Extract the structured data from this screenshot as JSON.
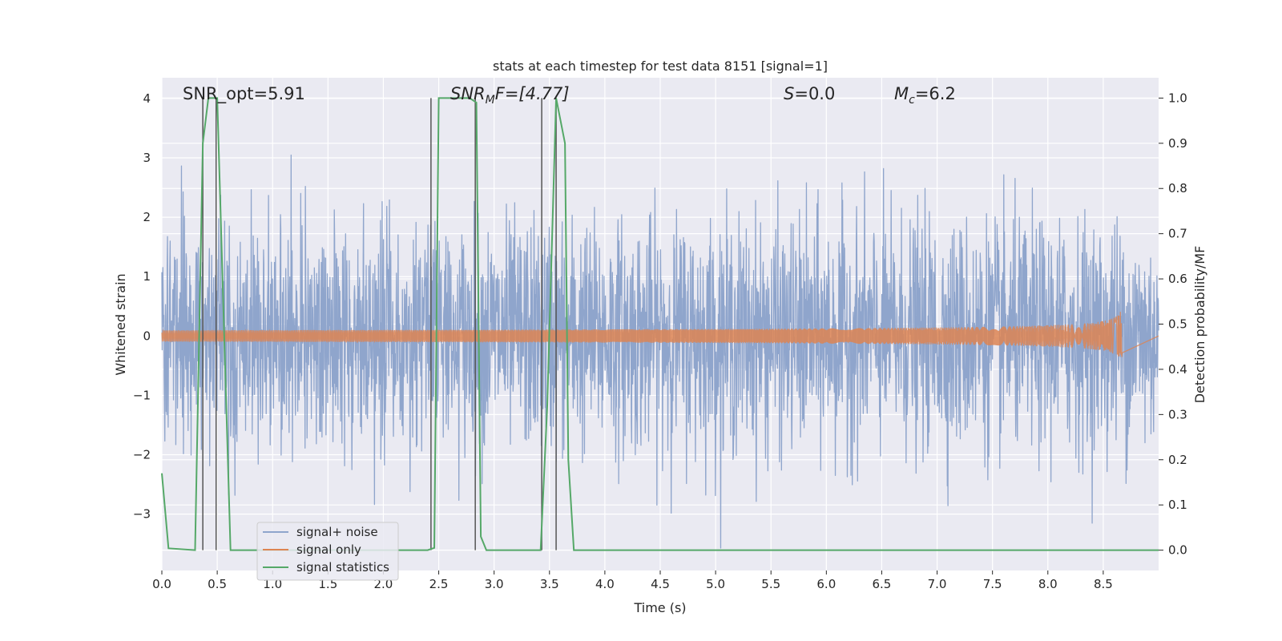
{
  "chart_data": {
    "type": "line",
    "title": "stats at each timestep for test data 8151 [signal=1]",
    "xlabel": "Time (s)",
    "ylabel": "Whitened strain",
    "ylabel_right": "Detection probability/MF",
    "xlim": [
      0,
      9
    ],
    "ylim": [
      -3.95,
      4.35
    ],
    "ylim_right": [
      -0.045,
      1.045
    ],
    "x_ticks": [
      "0.0",
      "0.5",
      "1.0",
      "1.5",
      "2.0",
      "2.5",
      "3.0",
      "3.5",
      "4.0",
      "4.5",
      "5.0",
      "5.5",
      "6.0",
      "6.5",
      "7.0",
      "7.5",
      "8.0",
      "8.5"
    ],
    "y_ticks": [
      "4",
      "3",
      "2",
      "1",
      "0",
      "−1",
      "−2",
      "−3"
    ],
    "y_tick_values": [
      4,
      3,
      2,
      1,
      0,
      -1,
      -2,
      -3
    ],
    "y_right_ticks": [
      "1.0",
      "0.9",
      "0.8",
      "0.7",
      "0.6",
      "0.5",
      "0.4",
      "0.3",
      "0.2",
      "0.1",
      "0.0"
    ],
    "y_right_tick_values": [
      1.0,
      0.9,
      0.8,
      0.7,
      0.6,
      0.5,
      0.4,
      0.3,
      0.2,
      0.1,
      0.0
    ],
    "grid": true,
    "legend_position": "lower-left",
    "annotations": {
      "snr_opt": "SNR_opt=5.91",
      "snr_mf_main": "SNR",
      "snr_mf_sub": "M",
      "snr_mf_rest": "F=[4.77]",
      "s_italic": "S",
      "s_rest": "=0.0",
      "mc_italic": "M",
      "mc_sub": "c",
      "mc_rest": "=6.2"
    },
    "colors": {
      "noise": "#8fa5cc",
      "signal": "#dd8452",
      "stats": "#55a868",
      "vline": "#555555",
      "background": "#eaeaf2",
      "grid": "#ffffff"
    },
    "series": [
      {
        "name": "signal+ noise",
        "description_type": "noise",
        "amplitude_typical": 1.0,
        "x_range": [
          0,
          9
        ]
      },
      {
        "name": "signal only",
        "description_type": "chirp",
        "x_range": [
          0,
          8.67
        ],
        "peak_amplitude": 0.52
      },
      {
        "name": "signal statistics",
        "axis": "right",
        "x": [
          0.0,
          0.06,
          0.3,
          0.37,
          0.42,
          0.5,
          0.56,
          0.62,
          2.4,
          2.46,
          2.5,
          2.78,
          2.84,
          2.88,
          2.93,
          3.42,
          3.48,
          3.56,
          3.64,
          3.67,
          3.72,
          9.0
        ],
        "y": [
          0.17,
          0.004,
          0.0,
          0.9,
          1.0,
          1.0,
          0.5,
          0.0,
          0.0,
          0.005,
          1.0,
          1.0,
          0.99,
          0.03,
          0.0,
          0.0,
          0.32,
          1.0,
          0.9,
          0.2,
          0.0,
          0.0
        ]
      }
    ],
    "vertical_lines_x": [
      0.37,
      0.49,
      2.43,
      2.83,
      3.43,
      3.56
    ],
    "legend": [
      "signal+ noise",
      "signal only",
      "signal statistics"
    ]
  }
}
